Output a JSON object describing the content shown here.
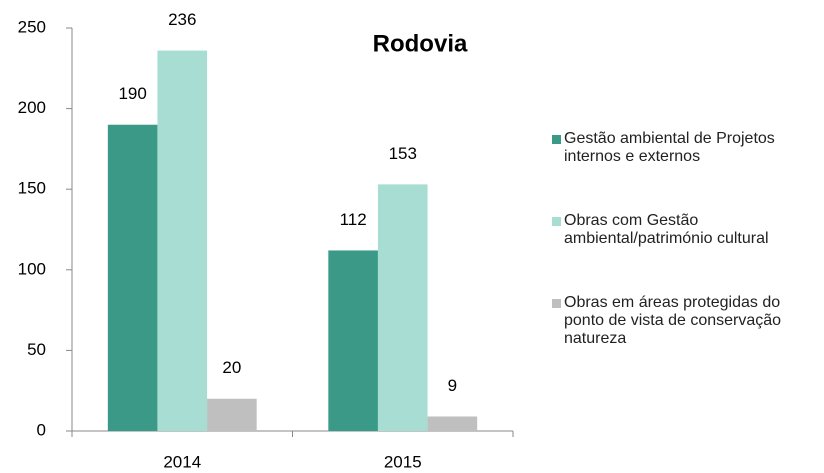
{
  "chart_data": {
    "type": "bar",
    "title": "Rodovia",
    "categories": [
      "2014",
      "2015"
    ],
    "series": [
      {
        "name": "Gestão ambiental de Projetos internos e externos",
        "color": "#3a9a87",
        "values": [
          190,
          112
        ]
      },
      {
        "name": "Obras com Gestão ambiental/património cultural",
        "color": "#a8ddd3",
        "values": [
          236,
          153
        ]
      },
      {
        "name": "Obras em áreas protegidas do ponto de vista de conservação natureza",
        "color": "#bfbfbf",
        "values": [
          20,
          9
        ]
      }
    ],
    "ylim": [
      0,
      250
    ],
    "yticks": [
      0,
      50,
      100,
      150,
      200,
      250
    ],
    "grid": false,
    "legend": "right"
  }
}
